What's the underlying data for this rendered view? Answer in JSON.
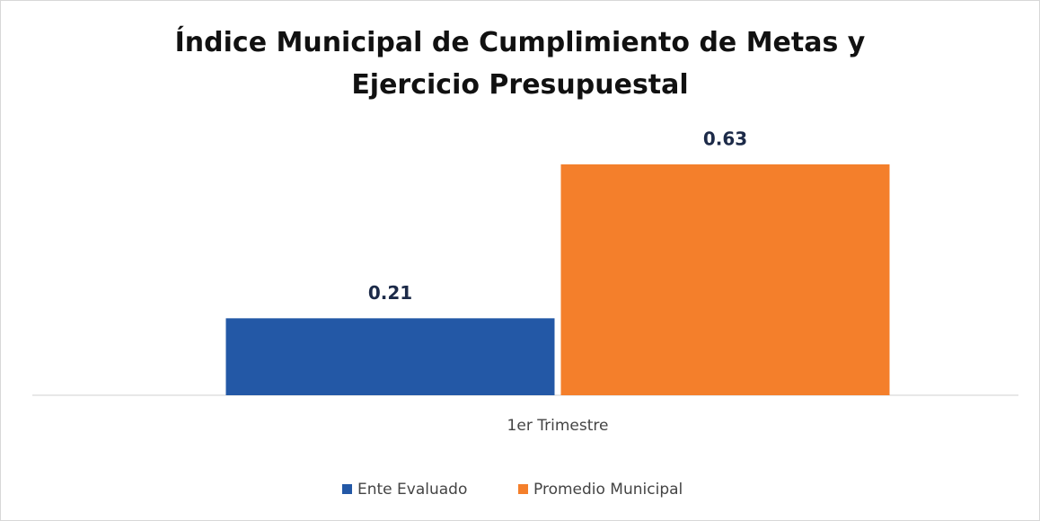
{
  "chart_data": {
    "type": "bar",
    "title": "Índice Municipal de Cumplimiento de Metas y Ejercicio Presupuestal",
    "categories": [
      "1er Trimestre"
    ],
    "series": [
      {
        "name": "Ente Evaluado",
        "color": "#2358a6",
        "values": [
          0.21
        ]
      },
      {
        "name": "Promedio Municipal",
        "color": "#f47f2b",
        "values": [
          0.63
        ]
      }
    ],
    "legend": "bottom"
  }
}
